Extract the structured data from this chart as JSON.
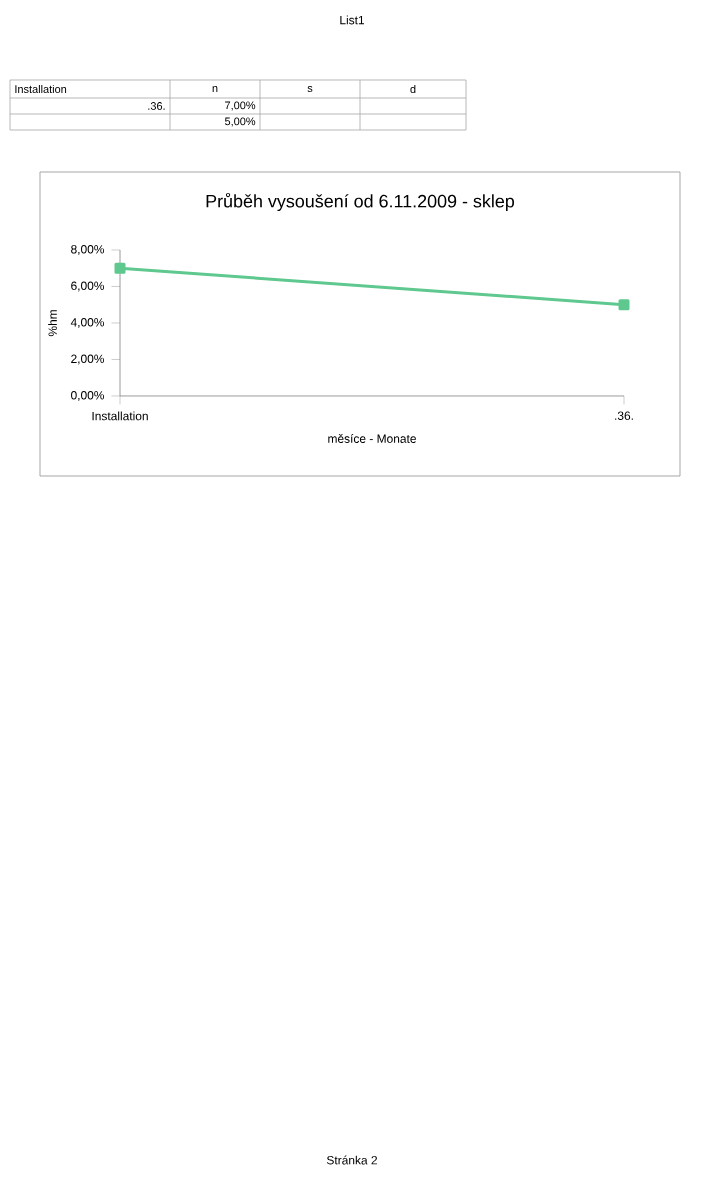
{
  "chart_data": {
    "type": "line",
    "title": "Průběh vysoušení od 6.11.2009 - sklep",
    "xlabel": "měsíce - Monate",
    "ylabel": "%hm",
    "categories": [
      "Installation",
      ".36."
    ],
    "series": [
      {
        "color": "#5ec88e",
        "values": [
          7.0,
          5.0
        ]
      }
    ],
    "ylim": [
      0,
      8
    ],
    "yticks": [
      {
        "value": 0,
        "label": "0,00%"
      },
      {
        "value": 2,
        "label": "2,00%"
      },
      {
        "value": 4,
        "label": "4,00%"
      },
      {
        "value": 6,
        "label": "6,00%"
      },
      {
        "value": 8,
        "label": "8,00%"
      }
    ],
    "marker": "square",
    "grid": false,
    "annotations": [
      "List1",
      "Installation",
      "n",
      "s",
      "d",
      ".36.",
      "7,00%",
      "5,00%",
      "Stránka 2"
    ]
  }
}
